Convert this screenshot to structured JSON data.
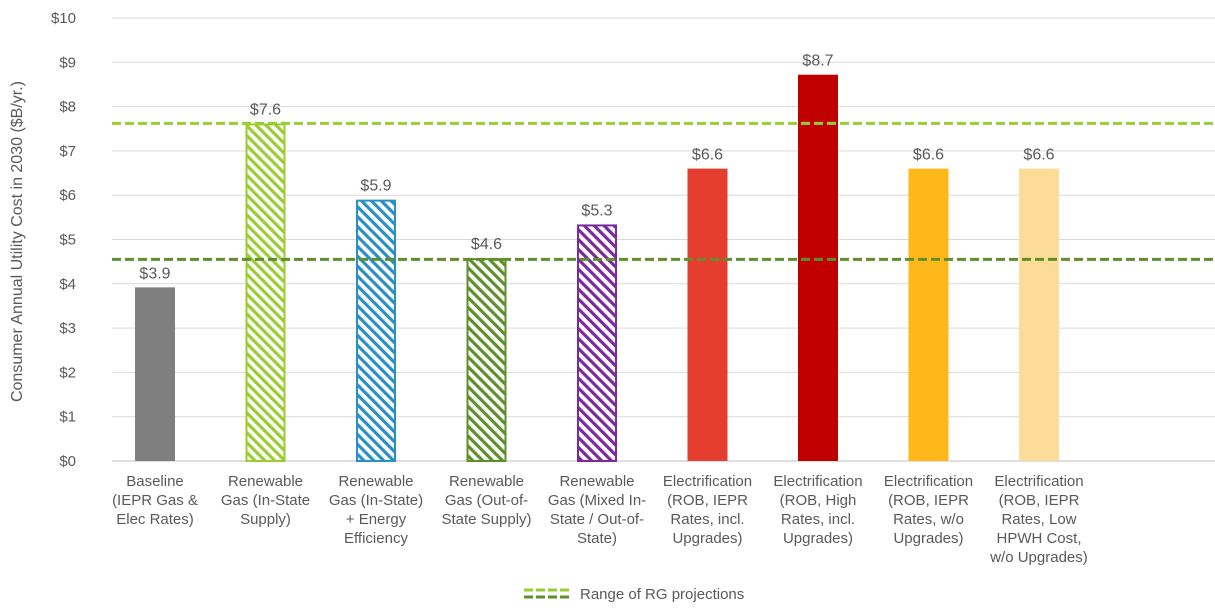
{
  "chart_data": {
    "type": "bar",
    "ylabel": "Consumer Annual Utility Cost in 2030 ($B/yr.)",
    "xlabel": "",
    "ylim": [
      0,
      10
    ],
    "yticks": [
      0,
      1,
      2,
      3,
      4,
      5,
      6,
      7,
      8,
      9,
      10
    ],
    "ytick_labels": [
      "$0",
      "$1",
      "$2",
      "$3",
      "$4",
      "$5",
      "$6",
      "$7",
      "$8",
      "$9",
      "$10"
    ],
    "grid": true,
    "categories": [
      [
        "Baseline",
        "(IEPR Gas &",
        "Elec Rates)"
      ],
      [
        "Renewable",
        "Gas (In-State",
        "Supply)"
      ],
      [
        "Renewable",
        "Gas (In-State)",
        "+ Energy",
        "Efficiency"
      ],
      [
        "Renewable",
        "Gas (Out-of-",
        "State Supply)"
      ],
      [
        "Renewable",
        "Gas (Mixed In-",
        "State / Out-of-",
        "State)"
      ],
      [
        "Electrification",
        "(ROB, IEPR",
        "Rates, incl.",
        "Upgrades)"
      ],
      [
        "Electrification",
        "(ROB, High",
        "Rates, incl.",
        "Upgrades)"
      ],
      [
        "Electrification",
        "(ROB, IEPR",
        "Rates, w/o",
        "Upgrades)"
      ],
      [
        "Electrification",
        "(ROB, IEPR",
        "Rates, Low",
        "HPWH Cost,",
        "w/o Upgrades)"
      ]
    ],
    "values": [
      3.92,
      7.62,
      5.9,
      4.58,
      5.34,
      6.6,
      8.72,
      6.6,
      6.6
    ],
    "data_labels": [
      "$3.9",
      "$7.6",
      "$5.9",
      "$4.6",
      "$5.3",
      "$6.6",
      "$8.7",
      "$6.6",
      "$6.6"
    ],
    "bar_styles": [
      {
        "fill": "solid",
        "color": "#7f7f7f"
      },
      {
        "fill": "hatched",
        "color": "#9acd32"
      },
      {
        "fill": "hatched",
        "color": "#2a8fc6"
      },
      {
        "fill": "hatched",
        "color": "#5e8f2a"
      },
      {
        "fill": "hatched",
        "color": "#7b2a9e"
      },
      {
        "fill": "solid",
        "color": "#e53e30"
      },
      {
        "fill": "solid",
        "color": "#c00000"
      },
      {
        "fill": "solid",
        "color": "#ffb819"
      },
      {
        "fill": "solid",
        "color": "#fddb98"
      }
    ],
    "reference_lines": [
      {
        "value": 7.62,
        "color": "#9acd32",
        "style": "dashed"
      },
      {
        "value": 4.55,
        "color": "#5e8f2a",
        "style": "dashed"
      }
    ],
    "legend": {
      "position": "bottom-center",
      "entries": [
        {
          "label": "Range of RG projections",
          "colors": [
            "#9acd32",
            "#5e8f2a"
          ],
          "style": "dashed"
        }
      ]
    }
  }
}
